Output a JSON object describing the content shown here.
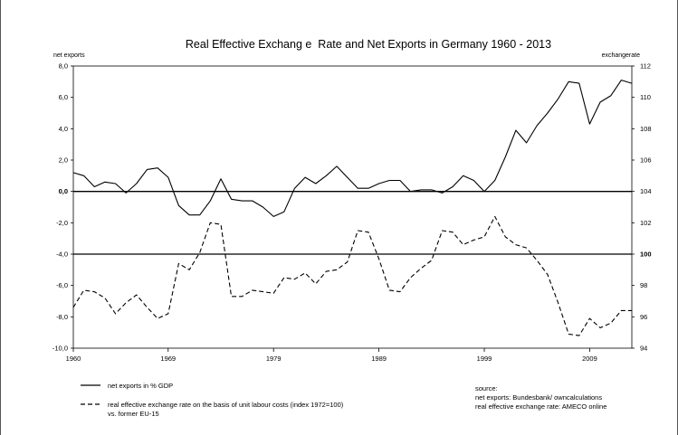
{
  "chart_data": {
    "type": "line",
    "title": "Real Effective Exchang e  Rate and Net Exports in Germany 1960 - 2013",
    "left_axis_label": "net exports",
    "right_axis_label": "exchangerate",
    "xlim": [
      1960,
      2013
    ],
    "x_ticks": [
      "1960",
      "1969",
      "1979",
      "1989",
      "1999",
      "2009"
    ],
    "ylim_left": [
      -10,
      8
    ],
    "y_ticks_left": [
      "8,0",
      "6,0",
      "4,0",
      "2,0",
      "0,0",
      "-2,0",
      "-4,0",
      "-6,0",
      "-8,0",
      "-10,0"
    ],
    "ylim_right": [
      94,
      112
    ],
    "y_ticks_right": [
      "112",
      "110",
      "108",
      "106",
      "104",
      "102",
      "100",
      "98",
      "96",
      "94"
    ],
    "reference_lines": [
      {
        "axis": "left",
        "value": 0
      },
      {
        "axis": "right",
        "value": 100
      }
    ],
    "x": [
      1960,
      1961,
      1962,
      1963,
      1964,
      1965,
      1966,
      1967,
      1968,
      1969,
      1970,
      1971,
      1972,
      1973,
      1974,
      1975,
      1976,
      1977,
      1978,
      1979,
      1980,
      1981,
      1982,
      1983,
      1984,
      1985,
      1986,
      1987,
      1988,
      1989,
      1990,
      1991,
      1992,
      1993,
      1994,
      1995,
      1996,
      1997,
      1998,
      1999,
      2000,
      2001,
      2002,
      2003,
      2004,
      2005,
      2006,
      2007,
      2008,
      2009,
      2010,
      2011,
      2012,
      2013
    ],
    "series": [
      {
        "name": "net exports in % GDP",
        "axis": "left",
        "style": "solid",
        "values": [
          1.2,
          1.0,
          0.3,
          0.6,
          0.5,
          -0.1,
          0.5,
          1.4,
          1.5,
          0.9,
          -0.9,
          -1.5,
          -1.5,
          -0.6,
          0.8,
          -0.5,
          -0.6,
          -0.6,
          -1.0,
          -1.6,
          -1.3,
          0.2,
          0.9,
          0.5,
          1.0,
          1.6,
          0.9,
          0.2,
          0.2,
          0.5,
          0.7,
          0.7,
          0.0,
          0.1,
          0.1,
          -0.1,
          0.3,
          1.0,
          0.7,
          0.0,
          0.7,
          2.2,
          3.9,
          3.1,
          4.2,
          5.0,
          5.9,
          7.0,
          6.9,
          4.3,
          5.7,
          6.1,
          7.1,
          6.9
        ]
      },
      {
        "name": "real effective exchange rate on the basis of unit labour costs (index 1972=100)",
        "name_line2": "vs. former EU-15",
        "axis": "right",
        "style": "dashed",
        "values": [
          96.6,
          97.7,
          97.6,
          97.2,
          96.2,
          96.9,
          97.4,
          96.6,
          95.9,
          96.2,
          99.4,
          99.0,
          100.1,
          102.0,
          101.9,
          97.3,
          97.3,
          97.7,
          97.6,
          97.5,
          98.5,
          98.4,
          98.8,
          98.1,
          98.9,
          99.0,
          99.5,
          101.5,
          101.4,
          99.7,
          97.7,
          97.6,
          98.5,
          99.1,
          99.6,
          101.5,
          101.4,
          100.6,
          100.9,
          101.1,
          102.4,
          101.1,
          100.6,
          100.4,
          99.6,
          98.7,
          96.9,
          94.9,
          94.8,
          95.9,
          95.3,
          95.6,
          96.4,
          96.4
        ]
      }
    ],
    "source_lines": [
      "source:",
      "net exports: Bundesbank/ owncalculations",
      "real effective exchange rate: AMECO online"
    ],
    "grid": false,
    "legend_position": "bottom-left"
  }
}
